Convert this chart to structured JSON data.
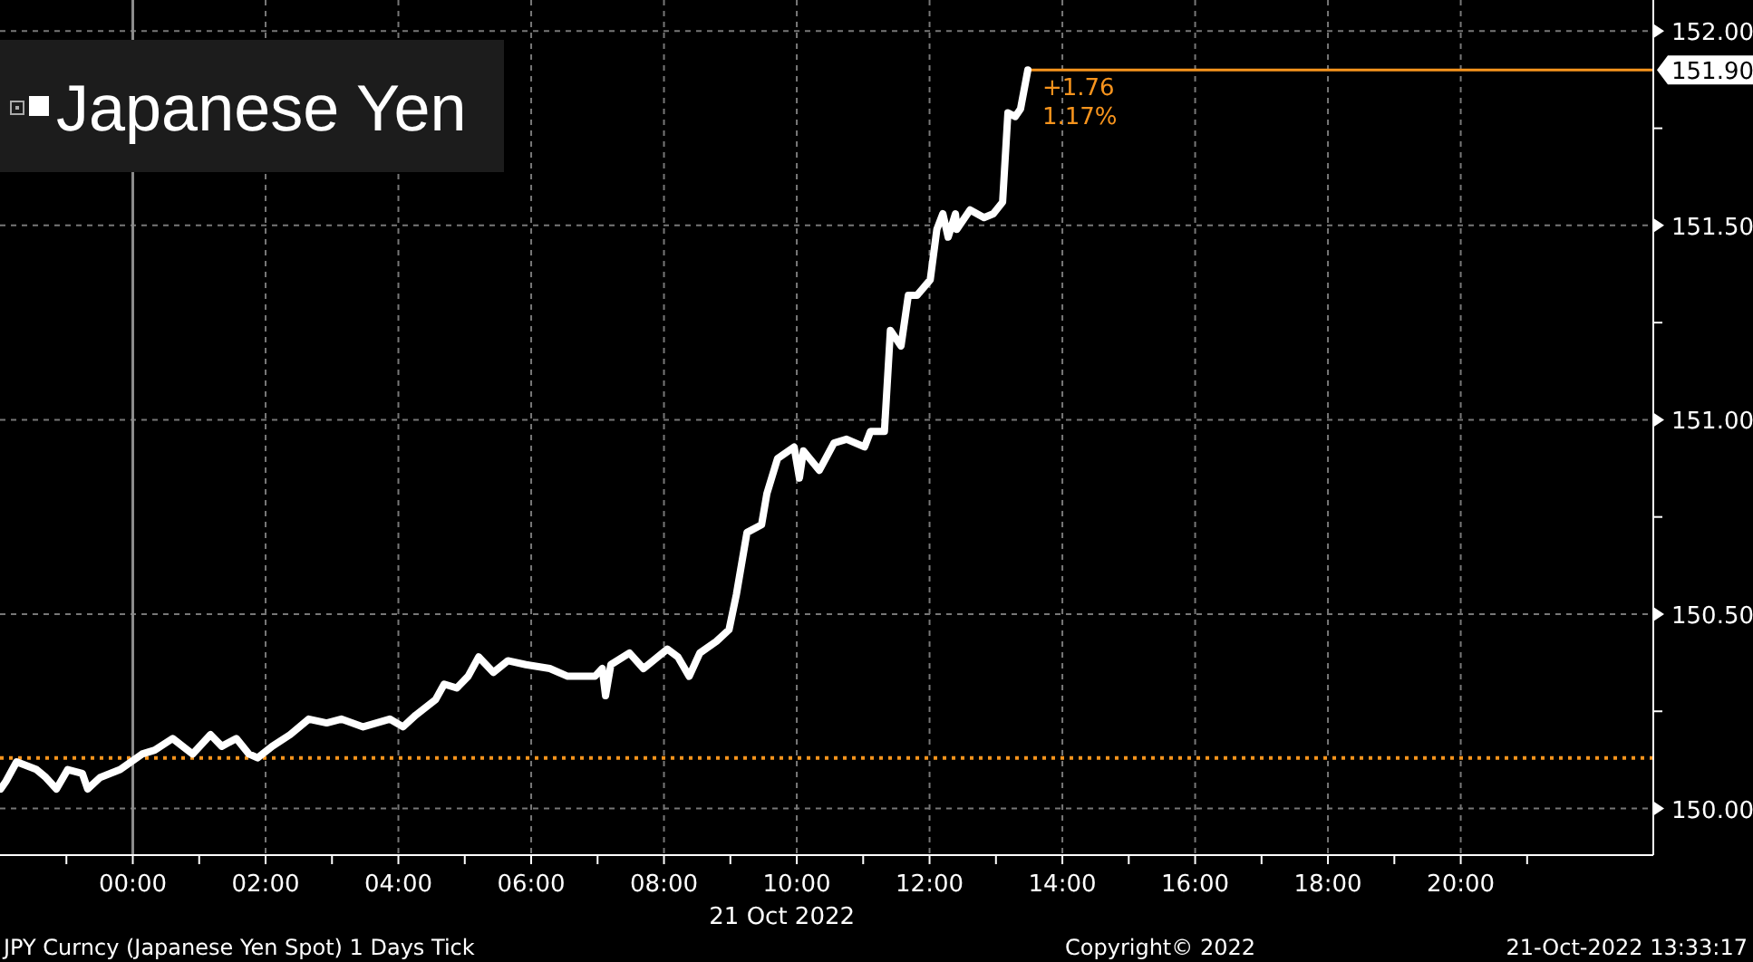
{
  "chart_data": {
    "type": "line",
    "xlabel": "21 Oct 2022",
    "legend": "top left",
    "grid": true,
    "marker": "none",
    "line_style": "solid",
    "xlim": [
      -2,
      22.9
    ],
    "ylim": [
      149.88,
      152.08
    ],
    "xticks": [
      {
        "value": -1,
        "label": null
      },
      {
        "value": 0,
        "label": "00:00"
      },
      {
        "value": 1,
        "label": null
      },
      {
        "value": 2,
        "label": "02:00"
      },
      {
        "value": 3,
        "label": null
      },
      {
        "value": 4,
        "label": "04:00"
      },
      {
        "value": 5,
        "label": null
      },
      {
        "value": 6,
        "label": "06:00"
      },
      {
        "value": 7,
        "label": null
      },
      {
        "value": 8,
        "label": "08:00"
      },
      {
        "value": 9,
        "label": null
      },
      {
        "value": 10,
        "label": "10:00"
      },
      {
        "value": 11,
        "label": null
      },
      {
        "value": 12,
        "label": "12:00"
      },
      {
        "value": 13,
        "label": null
      },
      {
        "value": 14,
        "label": "14:00"
      },
      {
        "value": 15,
        "label": null
      },
      {
        "value": 16,
        "label": "16:00"
      },
      {
        "value": 17,
        "label": null
      },
      {
        "value": 18,
        "label": "18:00"
      },
      {
        "value": 19,
        "label": null
      },
      {
        "value": 20,
        "label": "20:00"
      },
      {
        "value": 21,
        "label": null
      }
    ],
    "yticks": [
      {
        "value": 150,
        "label": "150.00"
      },
      {
        "value": 150.25,
        "label": null
      },
      {
        "value": 150.5,
        "label": "150.50"
      },
      {
        "value": 150.75,
        "label": null
      },
      {
        "value": 151,
        "label": "151.00"
      },
      {
        "value": 151.25,
        "label": null
      },
      {
        "value": 151.5,
        "label": "151.50"
      },
      {
        "value": 151.75,
        "label": null
      },
      {
        "value": 152,
        "label": "152.00"
      }
    ],
    "series": [
      {
        "name": "Japanese Yen",
        "color": "#ffffff",
        "x": [
          -1.99,
          -1.91,
          -1.75,
          -1.45,
          -1.31,
          -1.15,
          -0.98,
          -0.76,
          -0.68,
          -0.49,
          -0.19,
          0.14,
          0.33,
          0.6,
          0.9,
          1.17,
          1.34,
          1.56,
          1.75,
          1.88,
          2.1,
          2.37,
          2.65,
          2.92,
          3.14,
          3.47,
          3.87,
          4.07,
          4.26,
          4.56,
          4.69,
          4.88,
          5.05,
          5.21,
          5.43,
          5.65,
          5.92,
          6.28,
          6.55,
          6.96,
          7.07,
          7.12,
          7.2,
          7.48,
          7.69,
          8.05,
          8.21,
          8.38,
          8.54,
          8.79,
          8.98,
          9.09,
          9.25,
          9.47,
          9.55,
          9.71,
          9.96,
          10.04,
          10.1,
          10.34,
          10.56,
          10.75,
          11.02,
          11.11,
          11.32,
          11.41,
          11.57,
          11.68,
          11.81,
          12.01,
          12.11,
          12.2,
          12.28,
          12.39,
          12.41,
          12.61,
          12.82,
          12.96,
          13.1,
          13.18,
          13.29,
          13.37,
          13.48
        ],
        "values": [
          150.05,
          150.07,
          150.12,
          150.1,
          150.08,
          150.05,
          150.1,
          150.09,
          150.05,
          150.08,
          150.1,
          150.14,
          150.15,
          150.18,
          150.14,
          150.19,
          150.16,
          150.18,
          150.14,
          150.13,
          150.16,
          150.19,
          150.23,
          150.22,
          150.23,
          150.21,
          150.23,
          150.21,
          150.24,
          150.28,
          150.32,
          150.31,
          150.34,
          150.39,
          150.35,
          150.38,
          150.37,
          150.36,
          150.34,
          150.34,
          150.36,
          150.29,
          150.37,
          150.4,
          150.36,
          150.41,
          150.39,
          150.34,
          150.4,
          150.43,
          150.46,
          150.55,
          150.71,
          150.73,
          150.81,
          150.9,
          150.93,
          150.85,
          150.92,
          150.87,
          150.94,
          150.95,
          150.93,
          150.97,
          150.97,
          151.23,
          151.19,
          151.32,
          151.32,
          151.36,
          151.49,
          151.53,
          151.47,
          151.53,
          151.49,
          151.54,
          151.52,
          151.53,
          151.56,
          151.79,
          151.78,
          151.8,
          151.9
        ]
      }
    ],
    "ref_lines": [
      {
        "axis": "y",
        "value": 151.9,
        "label": "151.90",
        "color": "#f7941d",
        "line_style": "solid"
      },
      {
        "axis": "y",
        "value": 150.13,
        "color": "#f7941d",
        "line_style": "dotted"
      },
      {
        "axis": "x",
        "value": 0,
        "color": "#8c8c8c",
        "line_style": "solid"
      }
    ],
    "annotations": [
      {
        "text": "+1.76",
        "x": 13.48,
        "y": 151.9
      },
      {
        "text": "1.17%",
        "x": 13.48,
        "y": 151.9
      },
      "JPY Curncy (Japanese Yen Spot) 1 Days  Tick",
      "Copyright© 2022",
      "21-Oct-2022 13:33:17"
    ]
  }
}
